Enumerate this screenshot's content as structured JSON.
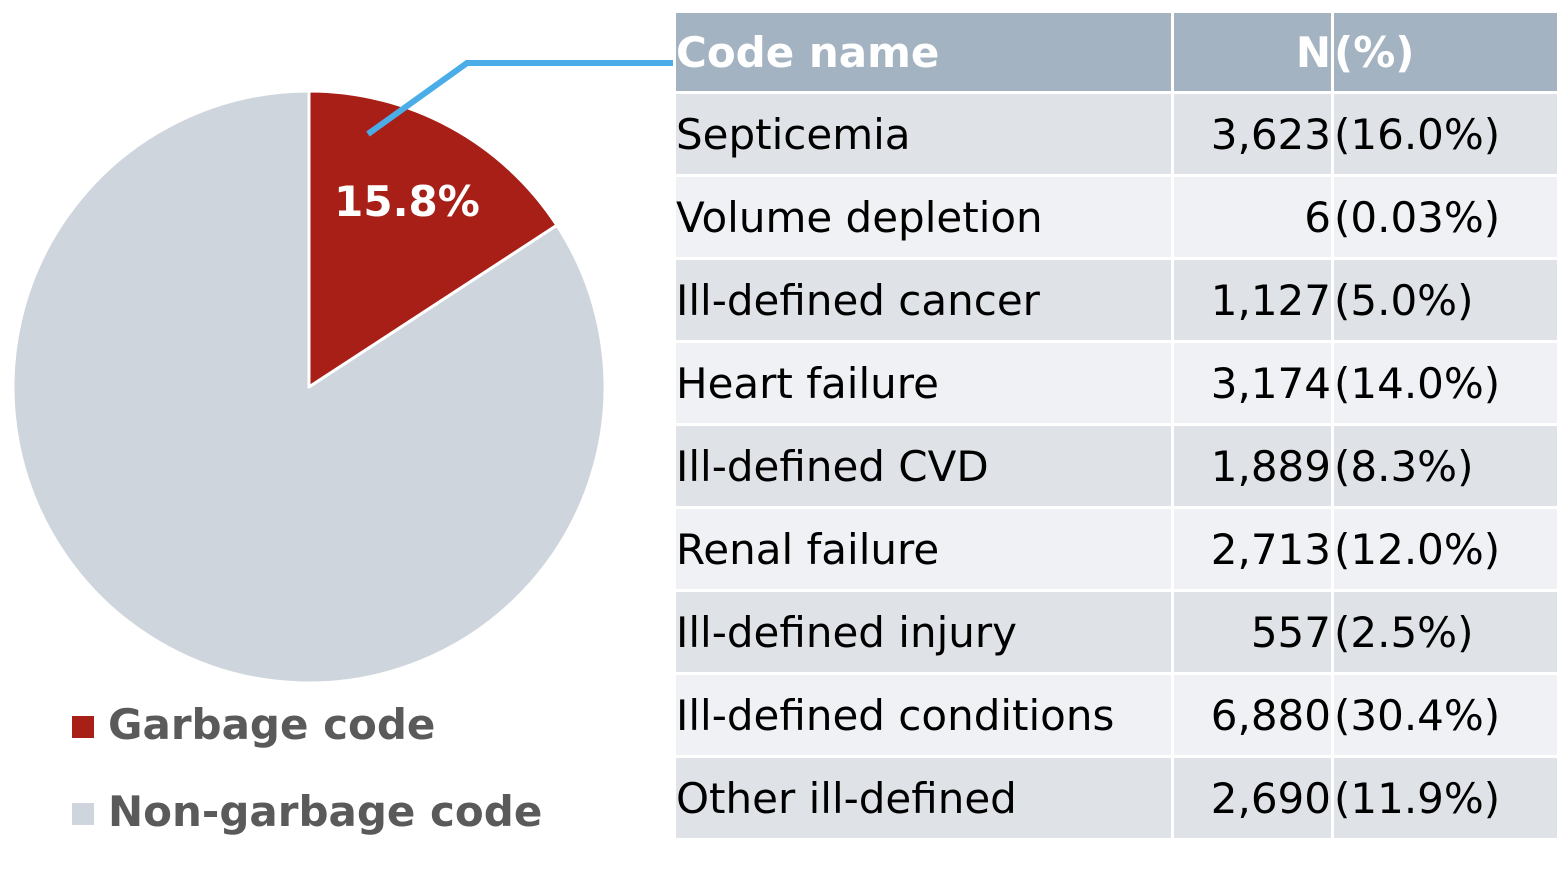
{
  "chart_data": {
    "type": "pie",
    "slices": [
      {
        "name": "Garbage code",
        "value": 15.8,
        "label": "15.8%",
        "color": "#a71f17"
      },
      {
        "name": "Non-garbage code",
        "value": 84.2,
        "label": "",
        "color": "#cfd5dd"
      }
    ],
    "start_angle": "12 o'clock",
    "direction": "clockwise",
    "legend_placement": "bottom-left"
  },
  "legend": {
    "items": [
      {
        "label": "Garbage code",
        "color": "#a71f17"
      },
      {
        "label": "Non-garbage code",
        "color": "#cfd5dd"
      }
    ]
  },
  "connector_color": "#4bade8",
  "table": {
    "headers": {
      "name": "Code name",
      "n": "N",
      "pct": "(%)"
    },
    "header_color": "#a4b3c2",
    "rows": [
      {
        "name": "Septicemia",
        "n": "3,623",
        "pct": "(16.0%)"
      },
      {
        "name": "Volume depletion",
        "n": "6",
        "pct": "(0.03%)"
      },
      {
        "name": "Ill-defined cancer",
        "n": "1,127",
        "pct": "(5.0%)"
      },
      {
        "name": "Heart failure",
        "n": "3,174",
        "pct": "(14.0%)"
      },
      {
        "name": "Ill-defined CVD",
        "n": "1,889",
        "pct": "(8.3%)"
      },
      {
        "name": "Renal failure",
        "n": "2,713",
        "pct": "(12.0%)"
      },
      {
        "name": "Ill-defined injury",
        "n": "557",
        "pct": "(2.5%)"
      },
      {
        "name": "Ill-defined conditions",
        "n": "6,880",
        "pct": "(30.4%)"
      },
      {
        "name": "Other ill-defined",
        "n": "2,690",
        "pct": "(11.9%)"
      }
    ]
  }
}
